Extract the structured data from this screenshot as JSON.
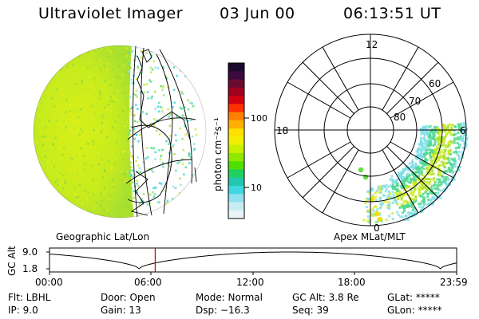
{
  "header": {
    "instrument": "Ultraviolet Imager",
    "date": "03 Jun 00",
    "time": "06:13:51 UT"
  },
  "colorbar": {
    "units_label": "photon cm⁻²s⁻¹",
    "tick_100": "100",
    "tick_10": "10",
    "colors_top_to_bottom": [
      "#1a0a2e",
      "#3a0a40",
      "#6a0a30",
      "#a00020",
      "#d00010",
      "#ff3000",
      "#ff8000",
      "#ffb000",
      "#ffe000",
      "#f0f000",
      "#c8f000",
      "#90e800",
      "#50e000",
      "#20d060",
      "#20c8b0",
      "#40d8e0",
      "#90e0f0",
      "#c8ecf4",
      "#e8f4f8"
    ]
  },
  "left_panel": {
    "caption": "Geographic Lat/Lon"
  },
  "right_panel": {
    "caption": "Apex MLat/MLT",
    "mlt_labels": {
      "top": "12",
      "left": "18",
      "right": "6",
      "bottom": "0"
    },
    "lat_labels": [
      "60",
      "70",
      "80"
    ]
  },
  "altitude_strip": {
    "axis_label": "GC Alt",
    "y_top": "9.0",
    "y_bottom": "1.8",
    "time_ticks": [
      "00:00",
      "06:00",
      "12:00",
      "18:00",
      "23:59"
    ],
    "current_time_fraction": 0.2596,
    "marker_color": "#d00000"
  },
  "footer": {
    "flt": "Flt: LBHL",
    "ip": "IP: 9.0",
    "door": "Door: Open",
    "gain": "Gain: 13",
    "mode": "Mode: Normal",
    "dsp": "Dsp: −16.3",
    "gc_alt": "GC Alt: 3.8 Re",
    "seq": "Seq: 39",
    "glat": "GLat: *****",
    "glon": "GLon: *****"
  }
}
